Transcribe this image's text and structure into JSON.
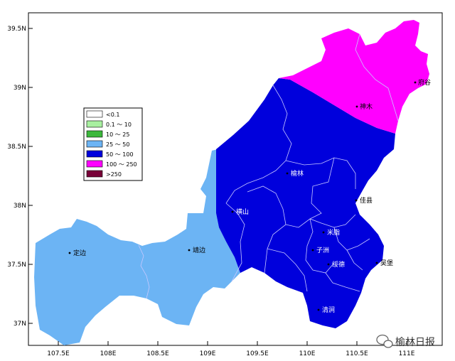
{
  "colors": {
    "lt01": "#ffffff",
    "r01_10": "#a8f0a0",
    "r10_25": "#3cb83c",
    "r25_50": "#6cb4f4",
    "r50_100": "#0000dc",
    "r100_250": "#ff00ff",
    "gt250": "#780038",
    "boundary": "#c8c8ff"
  },
  "axes": {
    "y_ticks": [
      "39.5N",
      "39N",
      "38.5N",
      "38N",
      "37.5N",
      "37N"
    ],
    "x_ticks": [
      "107.5E",
      "108E",
      "108.5E",
      "109E",
      "109.5E",
      "110E",
      "110.5E",
      "111E"
    ]
  },
  "legend": [
    {
      "label": "<0.1",
      "color_key": "lt01"
    },
    {
      "label": "0.1 ～ 10",
      "color_key": "r01_10"
    },
    {
      "label": "10 ～ 25",
      "color_key": "r10_25"
    },
    {
      "label": "25 ～ 50",
      "color_key": "r25_50"
    },
    {
      "label": "50 ～ 100",
      "color_key": "r50_100"
    },
    {
      "label": "100 ～ 250",
      "color_key": "r100_250"
    },
    {
      "label": ">250",
      "color_key": "gt250"
    }
  ],
  "counties": {
    "fugu": "府谷",
    "yulin": "榆林",
    "shenmu": "神木",
    "jiaxian": "佳县",
    "hengshan": "横山",
    "mizhi": "米脂",
    "jingbian": "靖边",
    "dingbian": "定边",
    "zizhou": "子洲",
    "suide": "绥德",
    "wubao": "吴堡",
    "qingjian": "清涧"
  },
  "watermark": {
    "icon": "wechat-icon",
    "text": "榆林日报"
  }
}
